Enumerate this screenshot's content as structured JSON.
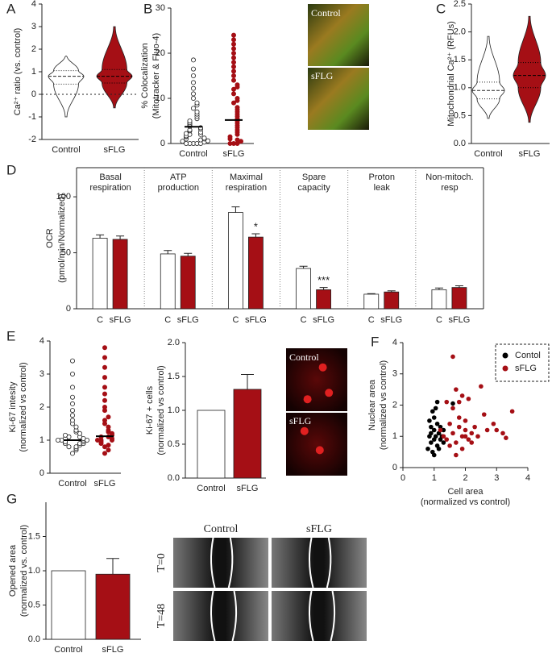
{
  "chart_data": [
    {
      "type": "violin",
      "panel": "A",
      "y_label": [
        "Ca²⁺ ratio (vs. control)"
      ],
      "categories": [
        "Control",
        "sFLG"
      ],
      "colors": [
        "#ffffff",
        "#a50f15"
      ],
      "min": [
        -1.0,
        -0.6
      ],
      "q1": [
        0.45,
        0.5
      ],
      "median": [
        0.8,
        0.8
      ],
      "q3": [
        1.05,
        1.1
      ],
      "max": [
        1.7,
        3.0
      ],
      "ylim": [
        -2,
        4
      ],
      "yticks": [
        -2,
        -1,
        0,
        1,
        2,
        3,
        4
      ],
      "zero_line": true
    },
    {
      "type": "dotplot",
      "panel": "B",
      "y_label": [
        "% Colocalization",
        "(Mitotracker & Fluo-4)"
      ],
      "categories": [
        "Control",
        "sFLG"
      ],
      "colors": [
        "#ffffff",
        "#a50f15"
      ],
      "values": [
        [
          0,
          0,
          0,
          0,
          0,
          0.3,
          0.5,
          0.6,
          0.8,
          1,
          1,
          1.2,
          1.5,
          1.7,
          2,
          2,
          2.2,
          2.5,
          2.8,
          3,
          3.2,
          3.5,
          3.8,
          4,
          4.3,
          4.6,
          5,
          5.5,
          6,
          6.5,
          7,
          7.8,
          8.5,
          9,
          10,
          11,
          12.2,
          13.5,
          15,
          16.5,
          18.5
        ],
        [
          0,
          0,
          0,
          0.5,
          0.8,
          1,
          1.5,
          2,
          2.5,
          3,
          3.5,
          4,
          4.5,
          5,
          5.5,
          6,
          6.5,
          7,
          7.5,
          8,
          9,
          9.5,
          10,
          11,
          12,
          12.5,
          13,
          14,
          15,
          16,
          17,
          18,
          19,
          20,
          21,
          22,
          23,
          24
        ]
      ],
      "means": [
        3.7,
        5.2
      ],
      "ylim": [
        0,
        30
      ],
      "yticks": [
        0,
        10,
        20,
        30
      ],
      "image_labels": [
        "Control",
        "sFLG"
      ]
    },
    {
      "type": "violin",
      "panel": "C",
      "y_label": [
        "Mitochondrial Ca²⁺ (RFUs)"
      ],
      "categories": [
        "Control",
        "sFLG"
      ],
      "colors": [
        "#ffffff",
        "#a50f15"
      ],
      "min": [
        0.45,
        0.38
      ],
      "q1": [
        0.8,
        1.0
      ],
      "median": [
        0.95,
        1.22
      ],
      "q3": [
        1.1,
        1.45
      ],
      "max": [
        1.92,
        2.28
      ],
      "ylim": [
        0,
        2.5
      ],
      "yticks": [
        {
          "value": 0,
          "label": "0.0"
        },
        0.5,
        {
          "value": 1,
          "label": "1.0"
        },
        1.5,
        {
          "value": 2,
          "label": "2.0"
        },
        2.5
      ]
    },
    {
      "type": "grouped_bar",
      "panel": "D",
      "y_label": [
        "OCR",
        "(pmol/min/Normalized)"
      ],
      "groups": [
        [
          "Basal",
          "respiration"
        ],
        [
          "ATP",
          "production"
        ],
        [
          "Maximal",
          "respiration"
        ],
        [
          "Spare",
          "capacity"
        ],
        [
          "Proton",
          "leak"
        ],
        [
          "Non-mitoch.",
          "resp"
        ]
      ],
      "series": [
        {
          "name": "C",
          "color": "#ffffff",
          "values": [
            63,
            49,
            86,
            36,
            13,
            17
          ],
          "errors": [
            3,
            3,
            5,
            2,
            0.5,
            1.5
          ]
        },
        {
          "name": "sFLG",
          "color": "#a50f15",
          "values": [
            62,
            47,
            64,
            17,
            15,
            19
          ],
          "errors": [
            3,
            2.5,
            3,
            2,
            1,
            1.5
          ],
          "annotations": [
            null,
            null,
            "*",
            "***",
            null,
            null
          ]
        }
      ],
      "ylim": [
        0,
        126
      ],
      "yticks": [
        0,
        50,
        100
      ]
    },
    {
      "type": "dotplot",
      "panel": "E",
      "y_label": [
        "Ki-67 intesity",
        "(normalized vs control)"
      ],
      "categories": [
        "Control",
        "sFLG"
      ],
      "colors": [
        "#ffffff",
        "#a50f15"
      ],
      "values": [
        [
          0.6,
          0.7,
          0.75,
          0.8,
          0.8,
          0.85,
          0.9,
          0.9,
          0.9,
          0.95,
          0.95,
          1,
          1,
          1,
          1,
          1.05,
          1.05,
          1.1,
          1.1,
          1.15,
          1.2,
          1.25,
          1.3,
          1.4,
          1.5,
          1.6,
          1.75,
          1.9,
          2.1,
          2.3,
          2.6,
          3.0,
          3.4
        ],
        [
          0.6,
          0.7,
          0.8,
          0.85,
          0.9,
          0.95,
          1,
          1,
          1,
          1.05,
          1.1,
          1.1,
          1.15,
          1.2,
          1.25,
          1.3,
          1.4,
          1.5,
          1.6,
          1.7,
          1.9,
          2.0,
          2.2,
          2.4,
          2.6,
          2.9,
          3.2,
          3.5,
          3.8
        ]
      ],
      "means": [
        1.0,
        1.12
      ],
      "ylim": [
        0,
        4
      ],
      "yticks": [
        0,
        1,
        2,
        3,
        4
      ]
    },
    {
      "type": "bar",
      "y_label": [
        "Ki-67 + cells",
        "(normalized vs control)"
      ],
      "categories": [
        "Control",
        "sFLG"
      ],
      "colors": [
        "#ffffff",
        "#a50f15"
      ],
      "values": [
        1.0,
        1.31
      ],
      "errors": [
        null,
        0.22
      ],
      "ylim": [
        0,
        2
      ],
      "yticks": [
        {
          "value": 0,
          "label": "0.0"
        },
        0.5,
        {
          "value": 1,
          "label": "1.0"
        },
        1.5,
        {
          "value": 2,
          "label": "2.0"
        }
      ],
      "image_labels": [
        "Control",
        "sFLG"
      ]
    },
    {
      "type": "scatter",
      "panel": "F",
      "y_label": [
        "Nuclear area",
        "(normalized vs control)"
      ],
      "x_label": [
        "Cell area",
        "(normalized vs control)"
      ],
      "series": [
        {
          "name": "Contol",
          "color": "#000000",
          "x": [
            0.8,
            0.85,
            0.9,
            0.9,
            0.95,
            1,
            1,
            1,
            1.05,
            1.1,
            1.1,
            1.15,
            1.2,
            1.2,
            1.25,
            1.3,
            0.85,
            0.95,
            1.05,
            1.15,
            0.9,
            1,
            1.1,
            1.6,
            1.3
          ],
          "y": [
            0.6,
            1.0,
            0.8,
            1.3,
            0.5,
            0.9,
            1.2,
            1.6,
            1.0,
            0.7,
            1.4,
            1.1,
            0.9,
            1.3,
            1.0,
            1.2,
            1.5,
            1.8,
            1.9,
            0.6,
            1.1,
            0.4,
            2.1,
            2.05,
            0.8
          ]
        },
        {
          "name": "sFLG",
          "color": "#a50f15",
          "x": [
            1.2,
            1.3,
            1.4,
            1.5,
            1.5,
            1.6,
            1.6,
            1.7,
            1.7,
            1.8,
            1.8,
            1.9,
            1.9,
            2.0,
            2.0,
            2.1,
            2.1,
            2.2,
            2.3,
            2.4,
            2.5,
            2.6,
            2.7,
            2.9,
            3.0,
            3.2,
            3.3,
            3.5,
            1.6,
            1.4,
            1.8,
            2.0,
            1.7,
            1.9,
            2.2
          ],
          "y": [
            1.2,
            1.0,
            0.9,
            1.4,
            0.7,
            3.55,
            1.1,
            2.5,
            0.8,
            1.3,
            2.1,
            1.0,
            0.6,
            1.5,
            1.2,
            2.2,
            0.9,
            1.1,
            1.3,
            1.0,
            2.6,
            1.7,
            1.2,
            1.4,
            1.2,
            1.1,
            0.95,
            1.8,
            1.9,
            2.1,
            1.6,
            1.0,
            0.4,
            2.3,
            0.8
          ]
        }
      ],
      "xlim": [
        0,
        4
      ],
      "xticks": [
        0,
        1,
        2,
        3,
        4
      ],
      "ylim": [
        0,
        4
      ],
      "yticks": [
        0,
        1,
        2,
        3,
        4
      ],
      "legend": "upper right"
    },
    {
      "type": "bar",
      "panel": "G",
      "y_label": [
        "Opened area",
        "(normalized vs. control)"
      ],
      "categories": [
        "Control",
        "sFLG"
      ],
      "colors": [
        "#ffffff",
        "#a50f15"
      ],
      "values": [
        1.0,
        0.95
      ],
      "errors": [
        null,
        0.23
      ],
      "ylim": [
        0,
        2
      ],
      "yticks": [
        {
          "value": 0,
          "label": "0.0"
        },
        0.5,
        {
          "value": 1,
          "label": "1.0"
        },
        1.5
      ],
      "image_columns": [
        "Control",
        "sFLG"
      ],
      "image_rows": [
        "T=0",
        "T=48"
      ]
    }
  ]
}
